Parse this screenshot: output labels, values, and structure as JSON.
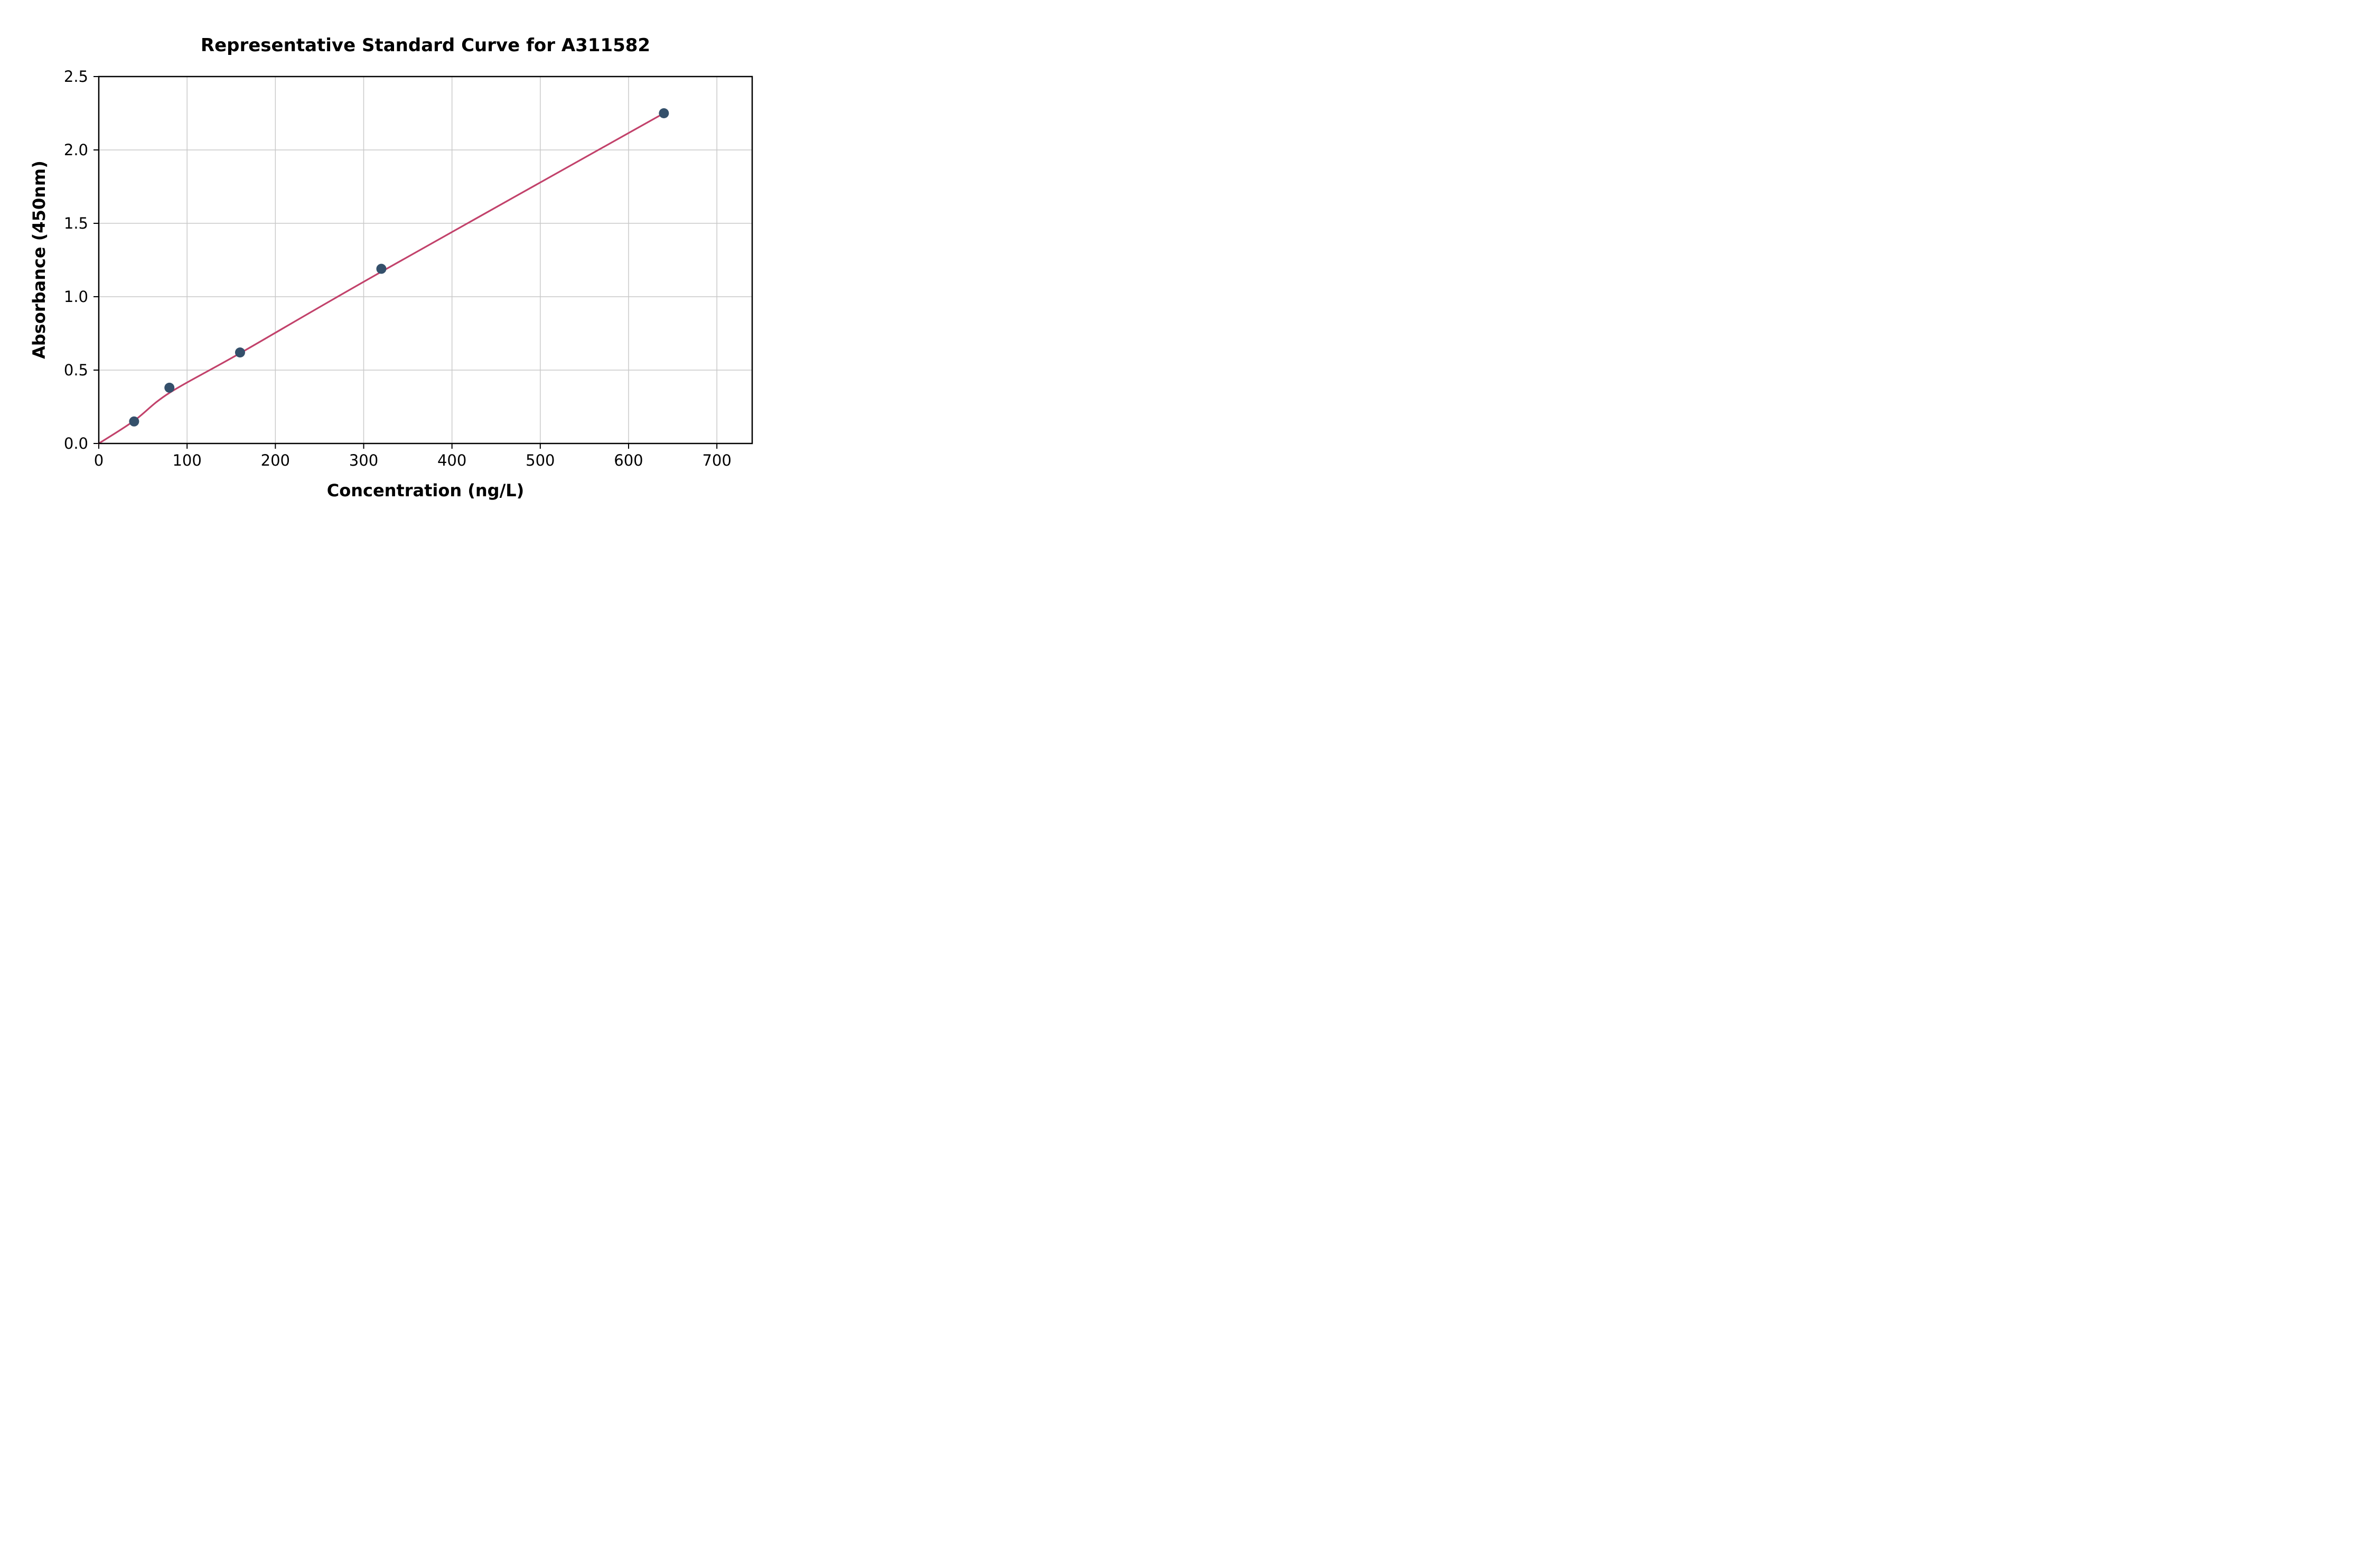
{
  "chart_data": {
    "type": "scatter",
    "title": "Representative Standard Curve for A311582",
    "xlabel": "Concentration (ng/L)",
    "ylabel": "Absorbance (450nm)",
    "xlim": [
      0,
      740
    ],
    "ylim": [
      0,
      2.5
    ],
    "x_ticks": [
      0,
      100,
      200,
      300,
      400,
      500,
      600,
      700
    ],
    "y_ticks": [
      0.0,
      0.5,
      1.0,
      1.5,
      2.0,
      2.5
    ],
    "grid": true,
    "legend": "none",
    "series": [
      {
        "name": "standard-points",
        "style": "scatter",
        "x": [
          40,
          80,
          160,
          320,
          640
        ],
        "y": [
          0.15,
          0.38,
          0.62,
          1.19,
          2.25
        ]
      },
      {
        "name": "fit-curve",
        "style": "line",
        "x": [
          0,
          40,
          80,
          160,
          320,
          640
        ],
        "y": [
          0.0,
          0.155,
          0.345,
          0.615,
          1.17,
          2.25
        ]
      }
    ],
    "colors": {
      "point": "#34506b",
      "curve": "#c2426b",
      "grid": "#c9c9c9",
      "axis": "#000000",
      "background": "#ffffff"
    }
  }
}
